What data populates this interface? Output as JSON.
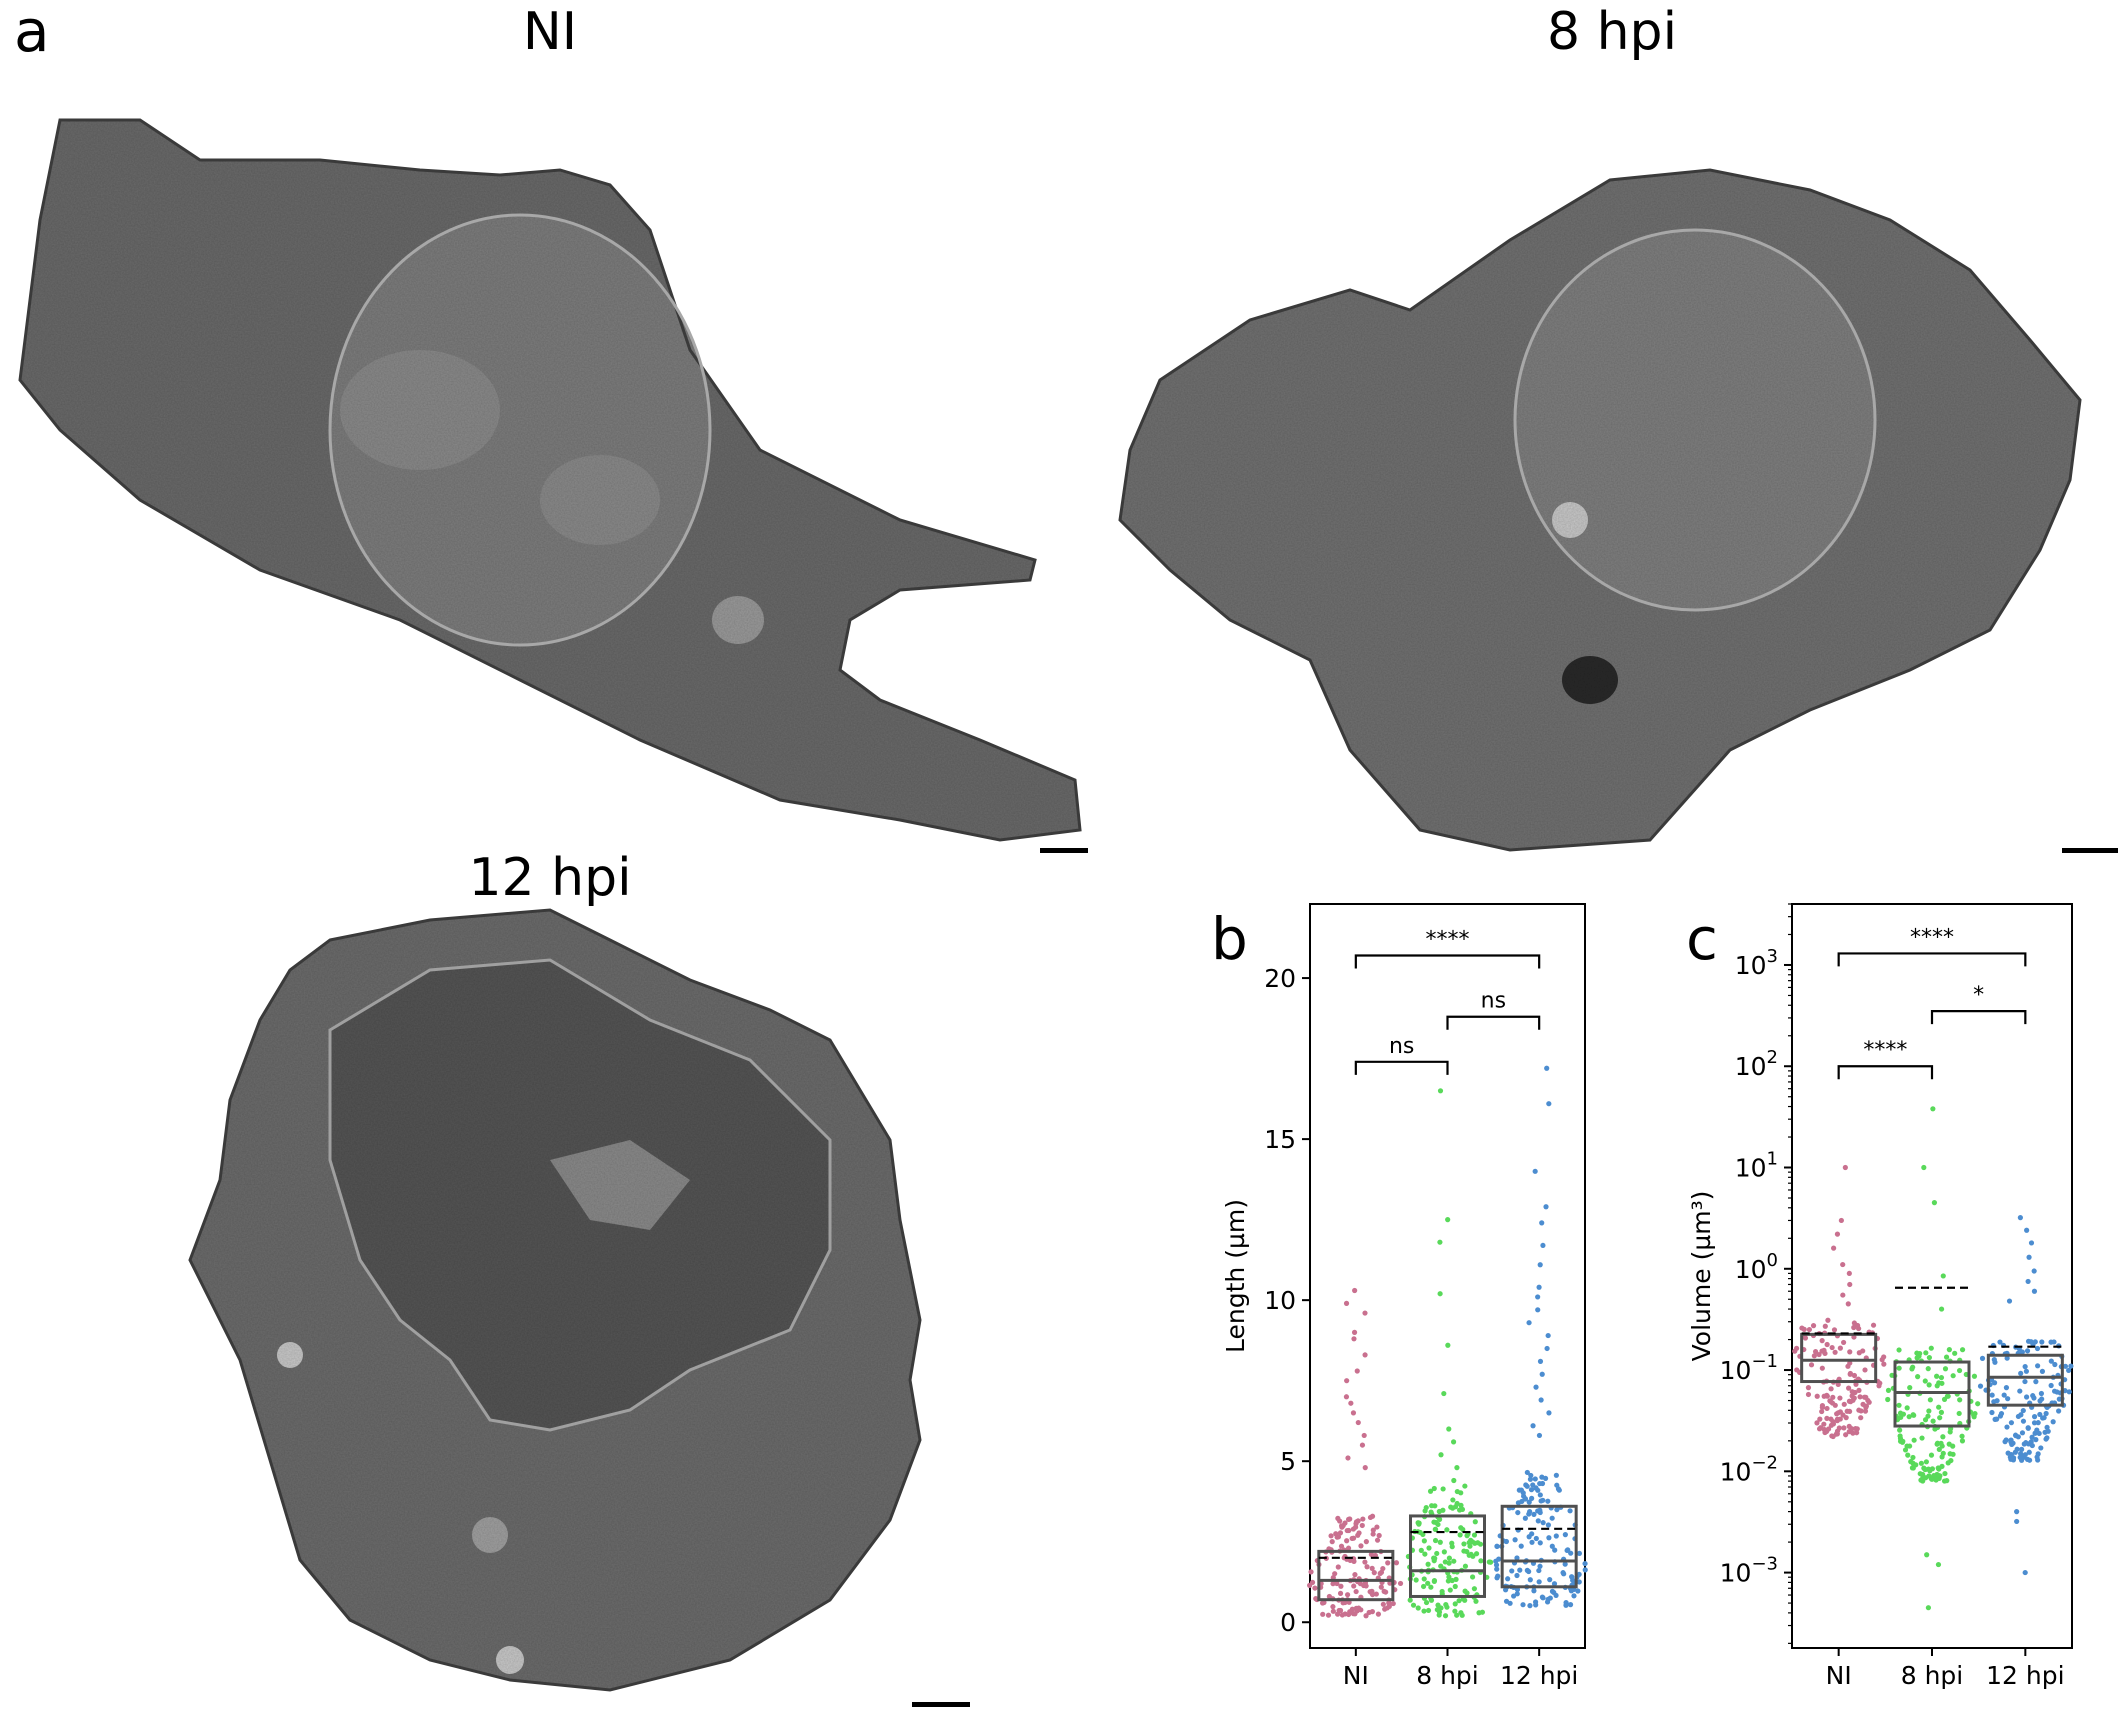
{
  "panels": {
    "a": {
      "letter": "a",
      "images": [
        {
          "title": "NI"
        },
        {
          "title": "8 hpi"
        },
        {
          "title": "12 hpi"
        }
      ]
    },
    "b": {
      "letter": "b"
    },
    "c": {
      "letter": "c"
    }
  },
  "colors": {
    "NI": "#c9708f",
    "8 hpi": "#59d95a",
    "12 hpi": "#4c8dd0",
    "box": "#505050"
  },
  "chart_data": [
    {
      "type": "box",
      "panel": "b",
      "categories": [
        "NI",
        "8 hpi",
        "12 hpi"
      ],
      "ylabel": "Length (µm)",
      "ylim": [
        -0.8,
        22.3
      ],
      "yticks": [
        0,
        5,
        10,
        15,
        20
      ],
      "boxes": [
        {
          "q1": 0.7,
          "median": 1.3,
          "q3": 2.2,
          "mean": 2.0
        },
        {
          "q1": 0.8,
          "median": 1.6,
          "q3": 3.3,
          "mean": 2.8
        },
        {
          "q1": 1.1,
          "median": 1.9,
          "q3": 3.6,
          "mean": 2.9
        }
      ],
      "outliers": [
        [
          10.3,
          9.9,
          9.6,
          9.0,
          8.8,
          8.3,
          7.8,
          7.5,
          7.0,
          6.8,
          6.5,
          6.2,
          5.8,
          5.5,
          5.1,
          4.8
        ],
        [
          16.5,
          12.5,
          11.8,
          10.2,
          8.6,
          7.1,
          6.0,
          5.6,
          5.2,
          4.8,
          4.4
        ],
        [
          17.2,
          16.1,
          14.0,
          12.9,
          12.4,
          11.7,
          11.1,
          10.4,
          10.1,
          9.7,
          9.3,
          8.9,
          8.5,
          8.1,
          7.7,
          7.3,
          6.9,
          6.5,
          6.1,
          5.8
        ]
      ],
      "annotations": [
        {
          "from": "NI",
          "to": "12 hpi",
          "y": 20.7,
          "text": "****"
        },
        {
          "from": "8 hpi",
          "to": "12 hpi",
          "y": 18.8,
          "text": "ns"
        },
        {
          "from": "NI",
          "to": "8 hpi",
          "y": 17.4,
          "text": "ns"
        }
      ]
    },
    {
      "type": "box",
      "panel": "c",
      "categories": [
        "NI",
        "8 hpi",
        "12 hpi"
      ],
      "ylabel": "Volume (µm³)",
      "yscale": "log",
      "ylim": [
        0.00018,
        4000
      ],
      "yticks": [
        0.001,
        0.01,
        0.1,
        1,
        10,
        100,
        1000
      ],
      "ytick_labels": [
        {
          "base": "10",
          "exp": "−3"
        },
        {
          "base": "10",
          "exp": "−2"
        },
        {
          "base": "10",
          "exp": "−1"
        },
        {
          "base": "10",
          "exp": "0"
        },
        {
          "base": "10",
          "exp": "1"
        },
        {
          "base": "10",
          "exp": "2"
        },
        {
          "base": "10",
          "exp": "3"
        }
      ],
      "boxes": [
        {
          "q1": 0.077,
          "median": 0.125,
          "q3": 0.225,
          "mean": 0.23
        },
        {
          "q1": 0.028,
          "median": 0.06,
          "q3": 0.12,
          "mean": 0.65
        },
        {
          "q1": 0.045,
          "median": 0.085,
          "q3": 0.14,
          "mean": 0.17
        }
      ],
      "outliers": [
        [
          10.0,
          3.0,
          2.2,
          1.6,
          1.1,
          0.9,
          0.7,
          0.55,
          0.45
        ],
        [
          38,
          10,
          4.5,
          0.85,
          0.4,
          0.0015,
          0.0012,
          0.00045
        ],
        [
          3.2,
          2.4,
          1.8,
          1.3,
          0.95,
          0.75,
          0.6,
          0.48,
          0.004,
          0.0032,
          0.001
        ]
      ],
      "annotations": [
        {
          "from": "NI",
          "to": "12 hpi",
          "y": 1300,
          "text": "****"
        },
        {
          "from": "8 hpi",
          "to": "12 hpi",
          "y": 350,
          "text": "*"
        },
        {
          "from": "NI",
          "to": "8 hpi",
          "y": 100,
          "text": "****"
        }
      ]
    }
  ]
}
